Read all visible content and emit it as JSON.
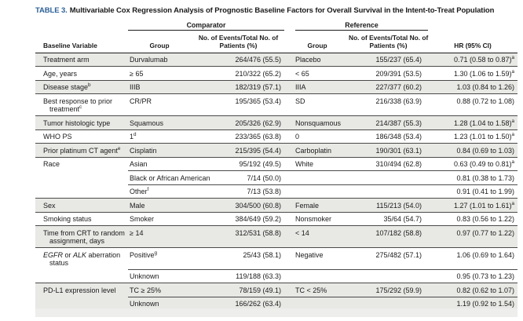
{
  "title": {
    "label": "TABLE 3.",
    "text": "Multivariable Cox Regression Analysis of Prognostic Baseline Factors for Overall Survival in the Intent-to-Treat Population"
  },
  "header": {
    "comparator": "Comparator",
    "reference": "Reference",
    "baseline_variable": "Baseline Variable",
    "group_comparator": "Group",
    "group_reference": "Group",
    "events_line1": "No. of Events/Total No. of",
    "events_line2": "Patients (%)",
    "hr": "HR (95% CI)"
  },
  "rows": [
    {
      "variable": "Treatment arm",
      "variable_sup": "",
      "comp_group": "Durvalumab",
      "comp_group_sup": "",
      "comp_events": "264/476 (55.5)",
      "ref_group": "Placebo",
      "ref_events": "155/237 (65.4)",
      "hr": "0.71 (0.58 to 0.87)",
      "hr_sup": "a",
      "shaded": true,
      "subrow": false
    },
    {
      "variable": "Age, years",
      "variable_sup": "",
      "comp_group": "≥ 65",
      "comp_group_sup": "",
      "comp_events": "210/322 (65.2)",
      "ref_group": "< 65",
      "ref_events": "209/391 (53.5)",
      "hr": "1.30 (1.06 to 1.59)",
      "hr_sup": "a",
      "shaded": false,
      "subrow": false
    },
    {
      "variable": "Disease stage",
      "variable_sup": "b",
      "comp_group": "IIIB",
      "comp_group_sup": "",
      "comp_events": "182/319 (57.1)",
      "ref_group": "IIIA",
      "ref_events": "227/377 (60.2)",
      "hr": "1.03 (0.84 to 1.26)",
      "hr_sup": "",
      "shaded": true,
      "subrow": false
    },
    {
      "variable": "Best response to prior treatment",
      "variable_sup": "c",
      "comp_group": "CR/PR",
      "comp_group_sup": "",
      "comp_events": "195/365 (53.4)",
      "ref_group": "SD",
      "ref_events": "216/338 (63.9)",
      "hr": "0.88 (0.72 to 1.08)",
      "hr_sup": "",
      "shaded": false,
      "subrow": false
    },
    {
      "variable": "Tumor histologic type",
      "variable_sup": "",
      "comp_group": "Squamous",
      "comp_group_sup": "",
      "comp_events": "205/326 (62.9)",
      "ref_group": "Nonsquamous",
      "ref_events": "214/387 (55.3)",
      "hr": "1.28 (1.04 to 1.58)",
      "hr_sup": "a",
      "shaded": true,
      "subrow": false
    },
    {
      "variable": "WHO PS",
      "variable_sup": "",
      "comp_group": "1",
      "comp_group_sup": "d",
      "comp_events": "233/365 (63.8)",
      "ref_group": "0",
      "ref_events": "186/348 (53.4)",
      "hr": "1.23 (1.01 to 1.50)",
      "hr_sup": "a",
      "shaded": false,
      "subrow": false
    },
    {
      "variable": "Prior platinum CT agent",
      "variable_sup": "e",
      "comp_group": "Cisplatin",
      "comp_group_sup": "",
      "comp_events": "215/395 (54.4)",
      "ref_group": "Carboplatin",
      "ref_events": "190/301 (63.1)",
      "hr": "0.84 (0.69 to 1.03)",
      "hr_sup": "",
      "shaded": true,
      "subrow": false
    },
    {
      "variable": "Race",
      "variable_sup": "",
      "comp_group": "Asian",
      "comp_group_sup": "",
      "comp_events": "95/192 (49.5)",
      "ref_group": "White",
      "ref_events": "310/494 (62.8)",
      "hr": "0.63 (0.49 to 0.81)",
      "hr_sup": "a",
      "shaded": false,
      "subrow": false
    },
    {
      "variable": "",
      "variable_sup": "",
      "comp_group": "Black or African American",
      "comp_group_sup": "",
      "comp_events": "7/14 (50.0)",
      "ref_group": "",
      "ref_events": "",
      "hr": "0.81 (0.38 to 1.73)",
      "hr_sup": "",
      "shaded": false,
      "subrow": true
    },
    {
      "variable": "",
      "variable_sup": "",
      "comp_group": "Other",
      "comp_group_sup": "f",
      "comp_events": "7/13 (53.8)",
      "ref_group": "",
      "ref_events": "",
      "hr": "0.91 (0.41 to 1.99)",
      "hr_sup": "",
      "shaded": false,
      "subrow": true
    },
    {
      "variable": "Sex",
      "variable_sup": "",
      "comp_group": "Male",
      "comp_group_sup": "",
      "comp_events": "304/500 (60.8)",
      "ref_group": "Female",
      "ref_events": "115/213 (54.0)",
      "hr": "1.27 (1.01 to 1.61)",
      "hr_sup": "a",
      "shaded": true,
      "subrow": false
    },
    {
      "variable": "Smoking status",
      "variable_sup": "",
      "comp_group": "Smoker",
      "comp_group_sup": "",
      "comp_events": "384/649 (59.2)",
      "ref_group": "Nonsmoker",
      "ref_events": "35/64 (54.7)",
      "hr": "0.83 (0.56 to 1.22)",
      "hr_sup": "",
      "shaded": false,
      "subrow": false
    },
    {
      "variable": "Time from CRT to random assignment, days",
      "variable_sup": "",
      "comp_group": "≥ 14",
      "comp_group_sup": "",
      "comp_events": "312/531 (58.8)",
      "ref_group": "< 14",
      "ref_events": "107/182 (58.8)",
      "hr": "0.97 (0.77 to 1.22)",
      "hr_sup": "",
      "shaded": true,
      "subrow": false
    },
    {
      "variable": [
        {
          "t": "EGFR",
          "i": true
        },
        {
          "t": " or ",
          "i": false
        },
        {
          "t": "ALK",
          "i": true
        },
        {
          "t": " aberration status",
          "i": false
        }
      ],
      "variable_sup": "",
      "comp_group": "Positive",
      "comp_group_sup": "g",
      "comp_events": "25/43 (58.1)",
      "ref_group": "Negative",
      "ref_events": "275/482 (57.1)",
      "hr": "1.06 (0.69 to 1.64)",
      "hr_sup": "",
      "shaded": false,
      "subrow": false
    },
    {
      "variable": "",
      "variable_sup": "",
      "comp_group": "Unknown",
      "comp_group_sup": "",
      "comp_events": "119/188 (63.3)",
      "ref_group": "",
      "ref_events": "",
      "hr": "0.95 (0.73 to 1.23)",
      "hr_sup": "",
      "shaded": false,
      "subrow": true
    },
    {
      "variable": "PD-L1 expression level",
      "variable_sup": "",
      "comp_group": "TC ≥ 25%",
      "comp_group_sup": "",
      "comp_events": "78/159 (49.1)",
      "ref_group": "TC < 25%",
      "ref_events": "175/292 (59.9)",
      "hr": "0.82 (0.62 to 1.07)",
      "hr_sup": "",
      "shaded": true,
      "subrow": false
    },
    {
      "variable": "",
      "variable_sup": "",
      "comp_group": "Unknown",
      "comp_group_sup": "",
      "comp_events": "166/262 (63.4)",
      "ref_group": "",
      "ref_events": "",
      "hr": "1.19 (0.92 to 1.54)",
      "hr_sup": "",
      "shaded": true,
      "subrow": true
    }
  ],
  "colors": {
    "title_label": "#2a5f96",
    "row_shade": "#e8e8e5",
    "rule": "#1c1c1c"
  }
}
